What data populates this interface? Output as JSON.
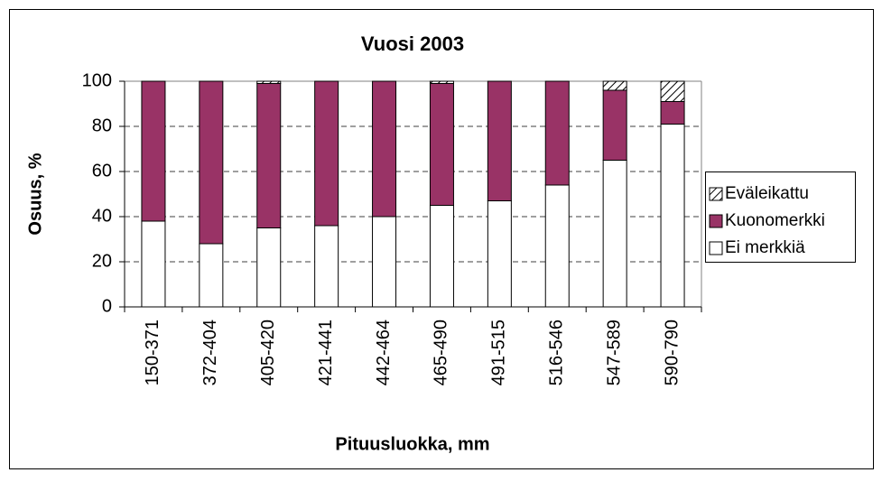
{
  "chart_data": {
    "type": "stacked-bar",
    "title": "Vuosi 2003",
    "x_label": "Pituusluokka, mm",
    "y_label": "Osuus, %",
    "categories": [
      "150-371",
      "372-404",
      "405-420",
      "421-441",
      "442-464",
      "465-490",
      "491-515",
      "516-546",
      "547-589",
      "590-790"
    ],
    "series": [
      {
        "name": "Ei merkkiä",
        "color": "#ffffff",
        "values": [
          38,
          28,
          35,
          36,
          40,
          45,
          47,
          54,
          65,
          81
        ]
      },
      {
        "name": "Kuonomerkki",
        "color": "#993366",
        "values": [
          62,
          72,
          64,
          64,
          60,
          54,
          53,
          46,
          31,
          10
        ]
      },
      {
        "name": "Eväleikattu",
        "color": "#ffffff",
        "pattern": "hatch",
        "values": [
          0,
          0,
          1,
          0,
          0,
          1,
          0,
          0,
          4,
          9
        ]
      }
    ],
    "ylim": [
      0,
      100
    ],
    "yticks": [
      0,
      20,
      40,
      60,
      80,
      100
    ],
    "grid": true,
    "legend": "right"
  }
}
